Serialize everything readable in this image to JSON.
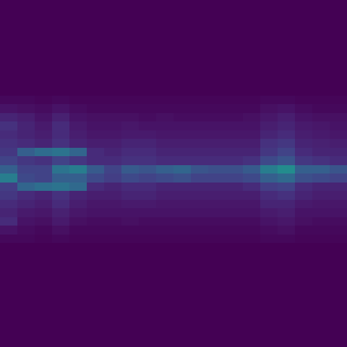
{
  "chart_data": {
    "type": "heatmap",
    "color": "Viridis",
    "tick_labels": false,
    "xlim": [
      -0.5,
      19.5
    ],
    "ylim": [
      39.5,
      -0.5
    ],
    "zlim": [
      0,
      1
    ],
    "cells": [
      [
        0,
        0,
        0,
        0,
        0,
        0,
        0,
        0,
        0,
        0,
        0,
        0,
        0,
        0,
        0,
        0,
        0,
        0,
        0,
        0
      ],
      [
        0,
        0,
        0,
        0,
        0,
        0,
        0,
        0,
        0,
        0,
        0,
        0,
        0,
        0,
        0,
        0,
        0,
        0,
        0,
        0
      ],
      [
        0,
        0,
        0,
        0,
        0,
        0,
        0,
        0,
        0,
        0,
        0,
        0,
        0,
        0,
        0,
        0,
        0,
        0,
        0,
        0
      ],
      [
        0,
        0,
        0,
        0,
        0,
        0,
        0,
        0,
        0,
        0,
        0,
        0,
        0,
        0,
        0,
        0,
        0,
        0,
        0,
        0
      ],
      [
        0,
        0,
        0,
        0,
        0,
        0,
        0,
        0,
        0,
        0,
        0,
        0,
        0,
        0,
        0,
        0,
        0,
        0,
        0,
        0
      ],
      [
        0,
        0,
        0,
        0,
        0,
        0,
        0,
        0,
        0,
        0,
        0,
        0,
        0,
        0,
        0,
        0,
        0,
        0,
        0,
        0
      ],
      [
        0,
        0,
        0,
        0,
        0,
        0,
        0,
        0,
        0,
        0,
        0,
        0,
        0,
        0,
        0,
        0,
        0,
        0,
        0,
        0
      ],
      [
        0,
        0,
        0,
        0,
        0,
        0,
        0,
        0,
        0,
        0,
        0,
        0,
        0,
        0,
        0,
        0,
        0,
        0,
        0,
        0
      ],
      [
        0,
        0,
        0,
        0,
        0,
        0,
        0,
        0,
        0,
        0,
        0,
        0,
        0,
        0,
        0,
        0,
        0,
        0,
        0,
        0
      ],
      [
        0,
        0,
        0,
        0,
        0,
        0,
        0,
        0,
        0,
        0,
        0,
        0,
        0,
        0,
        0,
        0,
        0,
        0,
        0,
        0
      ],
      [
        0,
        0,
        0,
        0,
        0,
        0,
        0,
        0,
        0,
        0,
        0,
        0,
        0,
        0,
        0,
        0,
        0,
        0,
        0,
        0
      ],
      [
        0.02,
        0.02,
        0.01,
        0.02,
        0.01,
        0.01,
        0.01,
        0.01,
        0.01,
        0.01,
        0.01,
        0.01,
        0.01,
        0.01,
        0.01,
        0.02,
        0.02,
        0.01,
        0.01,
        0.01
      ],
      [
        0.05,
        0.04,
        0.03,
        0.05,
        0.03,
        0.02,
        0.02,
        0.02,
        0.02,
        0.02,
        0.02,
        0.02,
        0.02,
        0.02,
        0.02,
        0.04,
        0.05,
        0.03,
        0.02,
        0.02
      ],
      [
        0.1,
        0.08,
        0.05,
        0.09,
        0.05,
        0.04,
        0.04,
        0.04,
        0.03,
        0.04,
        0.03,
        0.03,
        0.03,
        0.03,
        0.04,
        0.06,
        0.08,
        0.05,
        0.04,
        0.04
      ],
      [
        0.14,
        0.1,
        0.07,
        0.12,
        0.07,
        0.05,
        0.05,
        0.06,
        0.05,
        0.05,
        0.05,
        0.05,
        0.05,
        0.05,
        0.05,
        0.08,
        0.1,
        0.07,
        0.06,
        0.05
      ],
      [
        0.12,
        0.1,
        0.08,
        0.12,
        0.08,
        0.06,
        0.06,
        0.07,
        0.07,
        0.06,
        0.06,
        0.06,
        0.06,
        0.06,
        0.06,
        0.1,
        0.12,
        0.08,
        0.07,
        0.06
      ],
      [
        0.14,
        0.12,
        0.1,
        0.14,
        0.1,
        0.08,
        0.08,
        0.1,
        0.1,
        0.08,
        0.08,
        0.08,
        0.08,
        0.08,
        0.08,
        0.14,
        0.16,
        0.1,
        0.09,
        0.08
      ],
      [
        0.16,
        0.3,
        0.35,
        0.38,
        0.32,
        0.12,
        0.1,
        0.12,
        0.12,
        0.1,
        0.1,
        0.1,
        0.1,
        0.1,
        0.1,
        0.16,
        0.2,
        0.12,
        0.1,
        0.1
      ],
      [
        0.2,
        0.16,
        0.14,
        0.2,
        0.16,
        0.12,
        0.12,
        0.14,
        0.14,
        0.12,
        0.12,
        0.12,
        0.12,
        0.12,
        0.14,
        0.22,
        0.26,
        0.16,
        0.14,
        0.12
      ],
      [
        0.3,
        0.2,
        0.2,
        0.38,
        0.42,
        0.28,
        0.2,
        0.28,
        0.26,
        0.3,
        0.32,
        0.26,
        0.24,
        0.24,
        0.28,
        0.42,
        0.48,
        0.3,
        0.3,
        0.26
      ],
      [
        0.42,
        0.22,
        0.2,
        0.3,
        0.3,
        0.22,
        0.18,
        0.22,
        0.2,
        0.22,
        0.24,
        0.2,
        0.2,
        0.2,
        0.22,
        0.3,
        0.34,
        0.24,
        0.22,
        0.2
      ],
      [
        0.18,
        0.32,
        0.36,
        0.38,
        0.34,
        0.12,
        0.1,
        0.12,
        0.12,
        0.1,
        0.1,
        0.1,
        0.1,
        0.1,
        0.12,
        0.18,
        0.2,
        0.12,
        0.1,
        0.1
      ],
      [
        0.16,
        0.12,
        0.1,
        0.14,
        0.1,
        0.08,
        0.08,
        0.1,
        0.1,
        0.08,
        0.08,
        0.08,
        0.08,
        0.08,
        0.08,
        0.12,
        0.14,
        0.1,
        0.08,
        0.08
      ],
      [
        0.12,
        0.1,
        0.08,
        0.12,
        0.08,
        0.06,
        0.06,
        0.07,
        0.07,
        0.06,
        0.06,
        0.06,
        0.06,
        0.06,
        0.06,
        0.1,
        0.1,
        0.07,
        0.06,
        0.06
      ],
      [
        0.1,
        0.07,
        0.06,
        0.09,
        0.06,
        0.05,
        0.05,
        0.05,
        0.05,
        0.05,
        0.05,
        0.05,
        0.05,
        0.05,
        0.05,
        0.07,
        0.08,
        0.05,
        0.05,
        0.05
      ],
      [
        0.12,
        0.05,
        0.04,
        0.07,
        0.04,
        0.03,
        0.03,
        0.04,
        0.03,
        0.03,
        0.03,
        0.03,
        0.03,
        0.03,
        0.03,
        0.05,
        0.06,
        0.04,
        0.03,
        0.03
      ],
      [
        0.05,
        0.03,
        0.02,
        0.04,
        0.02,
        0.02,
        0.02,
        0.02,
        0.02,
        0.02,
        0.02,
        0.02,
        0.02,
        0.02,
        0.02,
        0.03,
        0.04,
        0.02,
        0.02,
        0.02
      ],
      [
        0.02,
        0.02,
        0.01,
        0.02,
        0.01,
        0.01,
        0.01,
        0.01,
        0.01,
        0.01,
        0.01,
        0.01,
        0.01,
        0.01,
        0.01,
        0.02,
        0.02,
        0.01,
        0.01,
        0.01
      ],
      [
        0,
        0,
        0,
        0,
        0,
        0,
        0,
        0,
        0,
        0,
        0,
        0,
        0,
        0,
        0,
        0,
        0,
        0,
        0,
        0
      ],
      [
        0,
        0,
        0,
        0,
        0,
        0,
        0,
        0,
        0,
        0,
        0,
        0,
        0,
        0,
        0,
        0,
        0,
        0,
        0,
        0
      ],
      [
        0,
        0,
        0,
        0,
        0,
        0,
        0,
        0,
        0,
        0,
        0,
        0,
        0,
        0,
        0,
        0,
        0,
        0,
        0,
        0
      ],
      [
        0,
        0,
        0,
        0,
        0,
        0,
        0,
        0,
        0,
        0,
        0,
        0,
        0,
        0,
        0,
        0,
        0,
        0,
        0,
        0
      ],
      [
        0,
        0,
        0,
        0,
        0,
        0,
        0,
        0,
        0,
        0,
        0,
        0,
        0,
        0,
        0,
        0,
        0,
        0,
        0,
        0
      ],
      [
        0,
        0,
        0,
        0,
        0,
        0,
        0,
        0,
        0,
        0,
        0,
        0,
        0,
        0,
        0,
        0,
        0,
        0,
        0,
        0
      ],
      [
        0,
        0,
        0,
        0,
        0,
        0,
        0,
        0,
        0,
        0,
        0,
        0,
        0,
        0,
        0,
        0,
        0,
        0,
        0,
        0
      ],
      [
        0,
        0,
        0,
        0,
        0,
        0,
        0,
        0,
        0,
        0,
        0,
        0,
        0,
        0,
        0,
        0,
        0,
        0,
        0,
        0
      ],
      [
        0,
        0,
        0,
        0,
        0,
        0,
        0,
        0,
        0,
        0,
        0,
        0,
        0,
        0,
        0,
        0,
        0,
        0,
        0,
        0
      ],
      [
        0,
        0,
        0,
        0,
        0,
        0,
        0,
        0,
        0,
        0,
        0,
        0,
        0,
        0,
        0,
        0,
        0,
        0,
        0,
        0
      ],
      [
        0,
        0,
        0,
        0,
        0,
        0,
        0,
        0,
        0,
        0,
        0,
        0,
        0,
        0,
        0,
        0,
        0,
        0,
        0,
        0
      ],
      [
        0,
        0,
        0,
        0,
        0,
        0,
        0,
        0,
        0,
        0,
        0,
        0,
        0,
        0,
        0,
        0,
        0,
        0,
        0,
        0
      ]
    ]
  }
}
